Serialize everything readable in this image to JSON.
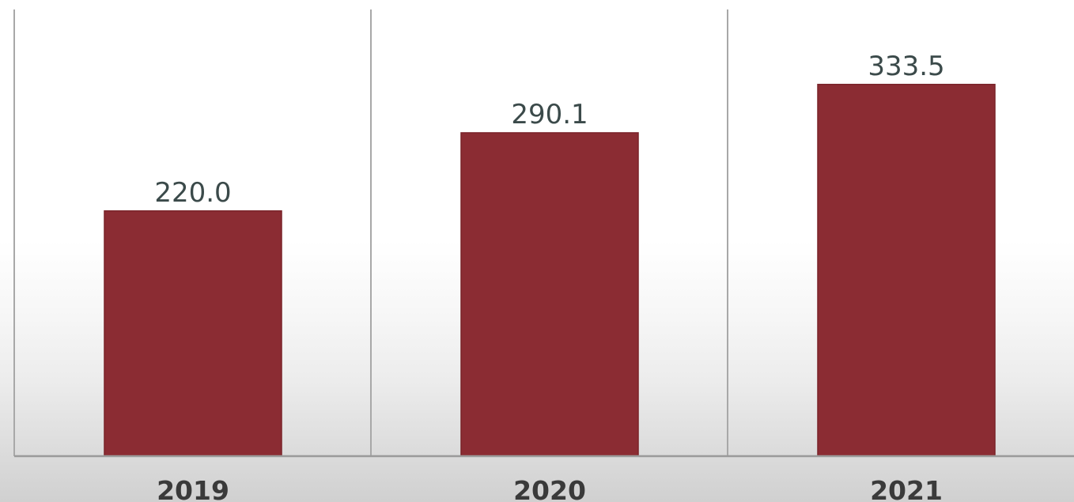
{
  "chart_data": {
    "type": "bar",
    "categories": [
      "2019",
      "2020",
      "2021"
    ],
    "values": [
      220.0,
      290.1,
      333.5
    ],
    "data_labels": [
      "220.0",
      "290.1",
      "333.5"
    ],
    "title": "",
    "xlabel": "",
    "ylabel": "",
    "ylim": [
      0,
      340
    ],
    "grid": "vertical separators between categories",
    "legend": "none",
    "colors": {
      "bar": "#8b2c33",
      "bar_outline": "#7a2329",
      "value_label": "#3b4a4a",
      "tick_label": "#3a3a3a",
      "axis_line": "#9a9a9a",
      "separator": "#a8a8a8"
    }
  }
}
